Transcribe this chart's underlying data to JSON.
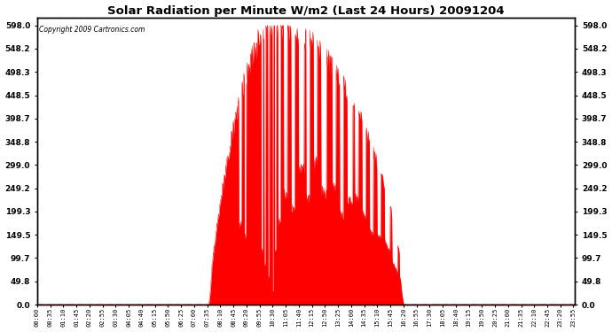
{
  "title": "Solar Radiation per Minute W/m2 (Last 24 Hours) 20091204",
  "copyright": "Copyright 2009 Cartronics.com",
  "fill_color": "#FF0000",
  "line_color": "#FF0000",
  "background_color": "#FFFFFF",
  "grid_color": "#AAAAAA",
  "yticks": [
    0.0,
    49.8,
    99.7,
    149.5,
    199.3,
    249.2,
    299.0,
    348.8,
    398.7,
    448.5,
    498.3,
    548.2,
    598.0
  ],
  "ymax": 615,
  "ymin": 0,
  "total_minutes": 1440,
  "sunrise_minute": 458,
  "sunset_minute": 982,
  "peak_minute": 635,
  "peak_value": 598.0,
  "figwidth": 6.9,
  "figheight": 3.75,
  "dpi": 100
}
